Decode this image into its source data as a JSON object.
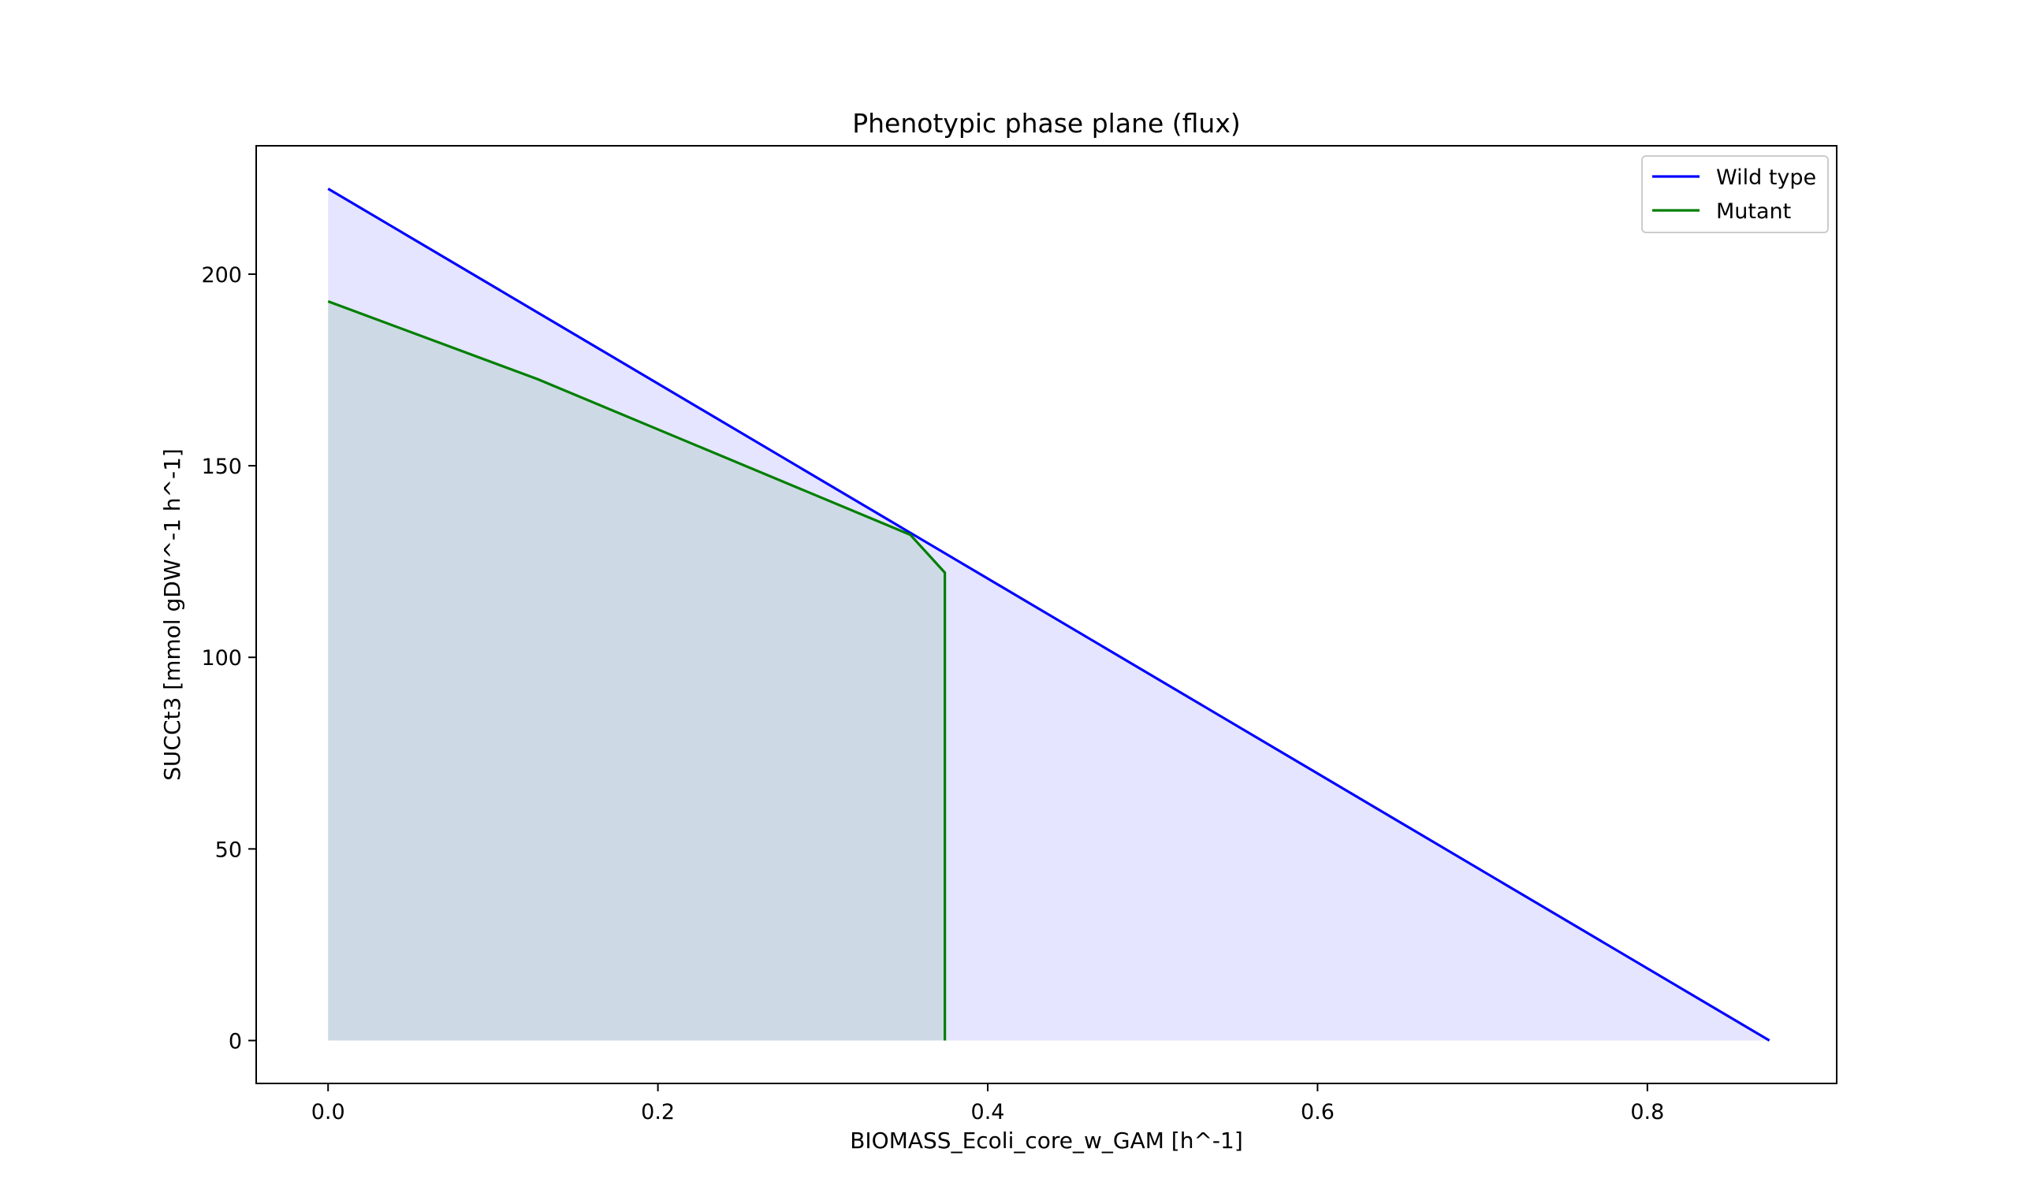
{
  "chart_data": {
    "type": "area",
    "title": "Phenotypic phase plane (flux)",
    "xlabel": "BIOMASS_Ecoli_core_w_GAM [h^-1]",
    "ylabel": "SUCCt3 [mmol gDW^-1 h^-1]",
    "xlim": [
      -0.0436,
      0.9148
    ],
    "ylim": [
      -11.2,
      233.5
    ],
    "xticks": [
      0.0,
      0.2,
      0.4,
      0.6,
      0.8
    ],
    "xtick_labels": [
      "0.0",
      "0.2",
      "0.4",
      "0.6",
      "0.8"
    ],
    "yticks": [
      0,
      50,
      100,
      150,
      200
    ],
    "ytick_labels": [
      "0",
      "50",
      "100",
      "150",
      "200"
    ],
    "grid": false,
    "legend_position": "top-right",
    "series": [
      {
        "name": "Wild type",
        "color": "#0000ff",
        "fill_color": "#0000ff",
        "fill_opacity": 0.1,
        "x": [
          0.0,
          0.874
        ],
        "y": [
          222.3,
          0.0
        ]
      },
      {
        "name": "Mutant",
        "color": "#007f00",
        "fill_color": "#007f00",
        "fill_opacity": 0.1,
        "x": [
          0.0,
          0.127,
          0.353,
          0.374,
          0.374
        ],
        "y": [
          192.9,
          172.6,
          132.0,
          122.1,
          0.0
        ]
      }
    ]
  }
}
